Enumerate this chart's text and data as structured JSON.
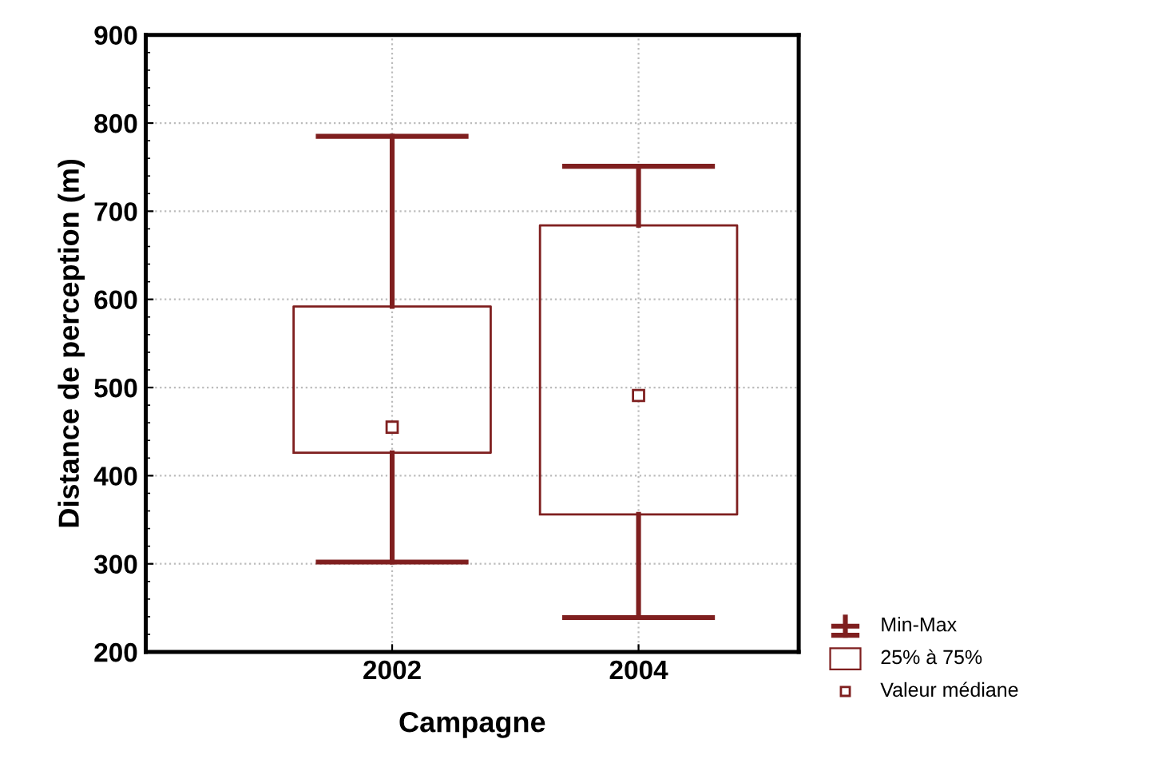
{
  "chart_data": {
    "type": "box",
    "xlabel": "Campagne",
    "ylabel": "Distance de perception (m)",
    "categories": [
      "2002",
      "2004"
    ],
    "color": "#7f1f1f",
    "boxes": [
      {
        "low": 302,
        "q1": 426,
        "median": 455,
        "q3": 592,
        "high": 785
      },
      {
        "low": 239,
        "q1": 356,
        "median": 491,
        "q3": 684,
        "high": 751
      }
    ],
    "ylim": [
      200,
      900
    ],
    "yticks": [
      200,
      300,
      400,
      500,
      600,
      700,
      800,
      900
    ],
    "grid": true,
    "marker": "square",
    "annotations": [
      "Min-Max",
      "25% à 75%",
      "Valeur médiane"
    ]
  }
}
